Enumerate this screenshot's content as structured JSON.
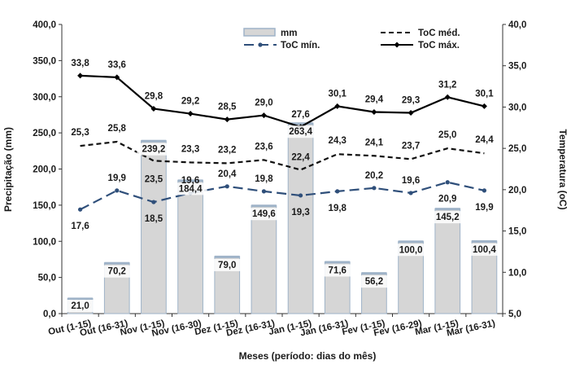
{
  "chart_data": {
    "type": "bar",
    "categories": [
      "Out (1-15)",
      "Out (16-31)",
      "Nov (1-15)",
      "Nov (16-30)",
      "Dez (1-15)",
      "Dez (16-31)",
      "Jan (1-15)",
      "Jan (16-31)",
      "Fev (1-15)",
      "Fev (16-29)",
      "Mar (1-15)",
      "Mar (16-31)"
    ],
    "xlabel": "Meses (período: dias do mês)",
    "ylabel": "Precipitação (mm)",
    "y2label": "Temperatura (oC)",
    "ylim": [
      0,
      400
    ],
    "y2lim": [
      5,
      40
    ],
    "yticks": [
      "0,0",
      "50,0",
      "100,0",
      "150,0",
      "200,0",
      "250,0",
      "300,0",
      "350,0",
      "400,0"
    ],
    "y2ticks": [
      "5,0",
      "10,0",
      "15,0",
      "20,0",
      "25,0",
      "30,0",
      "35,0",
      "40,0"
    ],
    "series": [
      {
        "name": "mm",
        "kind": "bar",
        "axis": "left",
        "values": [
          21.0,
          70.2,
          239.2,
          184.4,
          79.0,
          149.6,
          263.4,
          71.6,
          56.2,
          100.0,
          145.2,
          100.4
        ],
        "labels": [
          "21,0",
          "70,2",
          "239,2",
          "184,4",
          "79,0",
          "149,6",
          "263,4",
          "71,6",
          "56,2",
          "100,0",
          "145,2",
          "100,4"
        ],
        "color": "#d6d6d6",
        "edge": "#9fb3c8"
      },
      {
        "name": "ToC méd.",
        "kind": "line",
        "axis": "right",
        "style": "dashed",
        "marker": "none",
        "values": [
          25.3,
          25.8,
          23.5,
          23.3,
          23.2,
          23.6,
          22.4,
          24.3,
          24.1,
          23.7,
          25.0,
          24.4
        ],
        "labels": [
          "25,3",
          "25,8",
          "23,5",
          "23,3",
          "23,2",
          "23,6",
          "22,4",
          "24,3",
          "24,1",
          "23,7",
          "25,0",
          "24,4"
        ],
        "color": "#111111"
      },
      {
        "name": "ToC mín.",
        "kind": "line",
        "axis": "right",
        "style": "longdash",
        "marker": "circle",
        "values": [
          17.6,
          19.9,
          18.5,
          19.6,
          20.4,
          19.8,
          19.3,
          19.8,
          20.2,
          19.6,
          20.9,
          19.9
        ],
        "labels": [
          "17,6",
          "19,9",
          "18,5",
          "19,6",
          "20,4",
          "19,8",
          "19,3",
          "19,8",
          "20,2",
          "19,6",
          "20,9",
          "19,9"
        ],
        "color": "#2f4f7a"
      },
      {
        "name": "ToC máx.",
        "kind": "line",
        "axis": "right",
        "style": "solid",
        "marker": "diamond",
        "values": [
          33.8,
          33.6,
          29.8,
          29.2,
          28.5,
          29.0,
          27.6,
          30.1,
          29.4,
          29.3,
          31.2,
          30.1
        ],
        "labels": [
          "33,8",
          "33,6",
          "29,8",
          "29,2",
          "28,5",
          "29,0",
          "27,6",
          "30,1",
          "29,4",
          "29,3",
          "31,2",
          "30,1"
        ],
        "color": "#000000"
      }
    ],
    "legend": "top-center",
    "grid": false
  }
}
